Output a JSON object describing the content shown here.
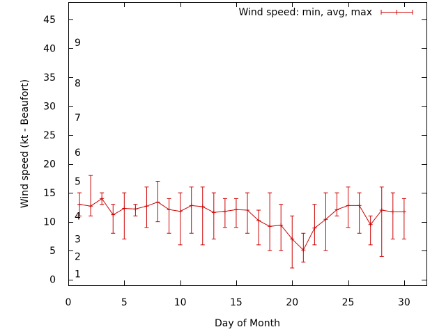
{
  "chart_data": {
    "type": "line",
    "title": "",
    "xlabel": "Day of Month",
    "ylabel": "Wind speed (kt - Beaufort)",
    "xlim": [
      0,
      32
    ],
    "ylim": [
      -1,
      48
    ],
    "xticks": [
      0,
      5,
      10,
      15,
      20,
      25,
      30
    ],
    "yticks": [
      0,
      5,
      10,
      15,
      20,
      25,
      30,
      35,
      40,
      45
    ],
    "grid": false,
    "legend_position": "top-right",
    "beaufort_labels": [
      {
        "label": "1",
        "y": 1
      },
      {
        "label": "2",
        "y": 4
      },
      {
        "label": "3",
        "y": 7
      },
      {
        "label": "4",
        "y": 11
      },
      {
        "label": "5",
        "y": 17
      },
      {
        "label": "6",
        "y": 22
      },
      {
        "label": "7",
        "y": 28
      },
      {
        "label": "8",
        "y": 34
      },
      {
        "label": "9",
        "y": 41
      }
    ],
    "series": [
      {
        "name": "Wind speed: min, avg, max",
        "color": "#cc0000",
        "x": [
          1,
          2,
          3,
          4,
          5,
          6,
          7,
          8,
          9,
          10,
          11,
          12,
          13,
          14,
          15,
          16,
          17,
          18,
          19,
          20,
          21,
          22,
          23,
          24,
          25,
          26,
          27,
          28,
          29,
          30
        ],
        "avg": [
          13,
          12.7,
          14,
          11.2,
          12.3,
          12.2,
          12.7,
          13.4,
          12.1,
          11.8,
          12.8,
          12.6,
          11.6,
          11.8,
          12.1,
          12,
          10.2,
          9.2,
          9.4,
          7,
          5.1,
          8.9,
          10.4,
          12.1,
          12.8,
          12.8,
          9.5,
          12,
          11.7,
          11.7
        ],
        "min": [
          11,
          11,
          13,
          8,
          7,
          11,
          9,
          10,
          8,
          6,
          8,
          6,
          7,
          9,
          9,
          8,
          6,
          5,
          5,
          2,
          3,
          6,
          5,
          11,
          9,
          8,
          6,
          4,
          7,
          7
        ],
        "max": [
          15,
          18,
          15,
          13,
          15,
          13,
          16,
          17,
          14,
          15,
          16,
          16,
          15,
          14,
          14,
          15,
          12,
          15,
          13,
          11,
          8,
          13,
          15,
          15,
          16,
          15,
          11,
          16,
          15,
          14
        ]
      }
    ]
  }
}
